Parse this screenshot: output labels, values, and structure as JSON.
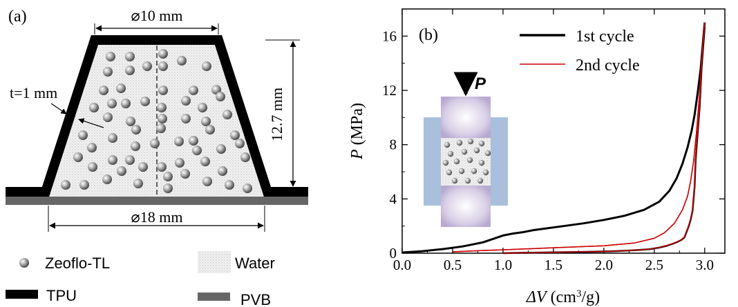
{
  "panel_a": {
    "label": "(a)",
    "top_diameter": "⌀10 mm",
    "bottom_diameter": "⌀18 mm",
    "height": "12.7 mm",
    "thickness": "t=1 mm",
    "legend": {
      "zeoflo": "Zeoflo-TL",
      "water": "Water",
      "tpu": "TPU",
      "pvb": "PVB"
    },
    "colors": {
      "tpu": "#000000",
      "pvb": "#666666",
      "water": "#d9d9d9",
      "sphere": "#9a9a9a"
    }
  },
  "chart_data": {
    "type": "line",
    "panel_label": "(b)",
    "xlabel": "ΔV (cm³/g)",
    "xlabel_parts": {
      "sym": "ΔV",
      "unit_pre": " (cm",
      "unit_sup": "3",
      "unit_post": "/g)"
    },
    "ylabel": "P (MPa)",
    "ylabel_parts": {
      "sym": "P",
      "unit": " (MPa)"
    },
    "xlim": [
      0,
      3.2
    ],
    "ylim": [
      0,
      18
    ],
    "xticks": [
      "0.0",
      "0.5",
      "1.0",
      "1.5",
      "2.0",
      "2.5",
      "3.0"
    ],
    "yticks": [
      "0",
      "4",
      "8",
      "12",
      "16"
    ],
    "xtick_values": [
      0,
      0.5,
      1.0,
      1.5,
      2.0,
      2.5,
      3.0
    ],
    "ytick_values": [
      0,
      4,
      8,
      12,
      16
    ],
    "legend_position": "top-right",
    "inset_label": "P",
    "series": [
      {
        "name": "1st cycle",
        "color": "#000000",
        "x": [
          0.0,
          0.2,
          0.4,
          0.6,
          0.8,
          1.0,
          1.1,
          1.2,
          1.3,
          1.4,
          1.6,
          1.8,
          2.0,
          2.2,
          2.4,
          2.55,
          2.65,
          2.72,
          2.78,
          2.83,
          2.87,
          2.9,
          2.93,
          2.96,
          2.98,
          3.0
        ],
        "y": [
          0.05,
          0.15,
          0.3,
          0.5,
          0.8,
          1.3,
          1.45,
          1.55,
          1.7,
          1.8,
          2.0,
          2.2,
          2.45,
          2.75,
          3.2,
          3.8,
          4.6,
          5.5,
          6.6,
          7.8,
          9.0,
          10.2,
          11.8,
          13.6,
          15.3,
          17.0
        ],
        "return_x": [],
        "return_y": []
      },
      {
        "name": "2nd cycle",
        "color": "#cc0000",
        "x": [
          0.5,
          0.8,
          1.0,
          1.5,
          2.0,
          2.3,
          2.5,
          2.6,
          2.7,
          2.78,
          2.83,
          2.86,
          2.89,
          2.92,
          2.95,
          2.97,
          3.0
        ],
        "y": [
          0.1,
          0.2,
          0.25,
          0.4,
          0.55,
          0.75,
          1.1,
          1.5,
          2.2,
          3.2,
          4.2,
          5.3,
          6.8,
          9.0,
          11.8,
          14.2,
          17.0
        ],
        "return_x": [
          3.0,
          2.97,
          2.95,
          2.93,
          2.91,
          2.9,
          2.88,
          2.86,
          2.84,
          2.82,
          2.8,
          2.77,
          2.73,
          2.68,
          2.62,
          2.55,
          2.45,
          2.3,
          2.1,
          1.8,
          1.5,
          1.2,
          1.0
        ],
        "return_y": [
          17.0,
          14.0,
          11.0,
          9.0,
          7.0,
          5.0,
          3.2,
          2.5,
          2.0,
          1.6,
          1.2,
          1.0,
          0.85,
          0.7,
          0.55,
          0.42,
          0.3,
          0.22,
          0.15,
          0.1,
          0.06,
          0.03,
          0.0
        ]
      }
    ]
  }
}
